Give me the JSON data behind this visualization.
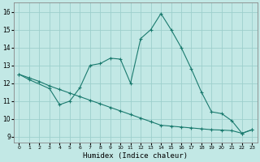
{
  "xlabel": "Humidex (Indice chaleur)",
  "background_color": "#c2e8e5",
  "grid_color": "#9dcfcc",
  "line_color": "#1a7a6e",
  "x_main": [
    0,
    1,
    3,
    4,
    5,
    6,
    7,
    8,
    9,
    10,
    11,
    12,
    13,
    14,
    15,
    16,
    17,
    18,
    19,
    20,
    21,
    22,
    23
  ],
  "y_main": [
    12.5,
    12.2,
    11.7,
    10.8,
    11.0,
    11.75,
    13.0,
    13.1,
    13.4,
    13.35,
    12.0,
    14.5,
    15.0,
    15.9,
    15.0,
    14.0,
    12.8,
    11.5,
    10.4,
    10.3,
    9.9,
    9.2,
    9.4
  ],
  "x_trend": [
    0,
    1,
    2,
    3,
    4,
    5,
    6,
    7,
    8,
    9,
    10,
    11,
    12,
    13,
    14,
    15,
    16,
    17,
    18,
    19,
    20,
    21,
    22,
    23
  ],
  "y_trend": [
    12.5,
    12.3,
    12.1,
    11.85,
    11.65,
    11.45,
    11.25,
    11.05,
    10.85,
    10.65,
    10.45,
    10.25,
    10.05,
    9.85,
    9.65,
    9.6,
    9.55,
    9.5,
    9.45,
    9.4,
    9.38,
    9.35,
    9.2,
    9.4
  ],
  "xlim": [
    -0.5,
    23.5
  ],
  "ylim": [
    8.7,
    16.5
  ],
  "yticks": [
    9,
    10,
    11,
    12,
    13,
    14,
    15,
    16
  ],
  "xticks": [
    0,
    1,
    2,
    3,
    4,
    5,
    6,
    7,
    8,
    9,
    10,
    11,
    12,
    13,
    14,
    15,
    16,
    17,
    18,
    19,
    20,
    21,
    22,
    23
  ]
}
